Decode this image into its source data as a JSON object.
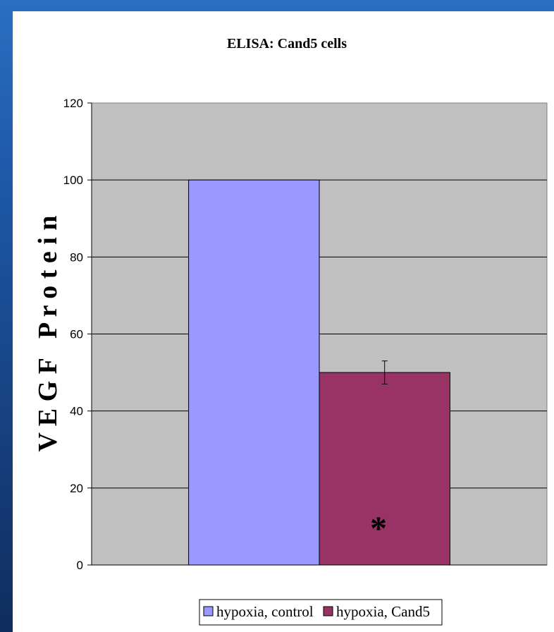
{
  "colors": {
    "plot_background": "#c0c0c0",
    "control_bar": "#9999ff",
    "cand5_bar": "#993366",
    "gridline": "#000000"
  },
  "annotation_text": "*",
  "chart_data": {
    "type": "bar",
    "title": "ELISA: Cand5 cells",
    "xlabel": "",
    "ylabel": "V E G F   P r o t e i n",
    "ylim": [
      0,
      120
    ],
    "yticks": [
      0,
      20,
      40,
      60,
      80,
      100,
      120
    ],
    "grid": true,
    "legend_position": "bottom",
    "series": [
      {
        "name": "hypoxia, control",
        "value": 100,
        "color": "#9999ff"
      },
      {
        "name": "hypoxia, Cand5",
        "value": 50,
        "error_low": 47,
        "error_high": 53,
        "color": "#993366"
      }
    ]
  }
}
